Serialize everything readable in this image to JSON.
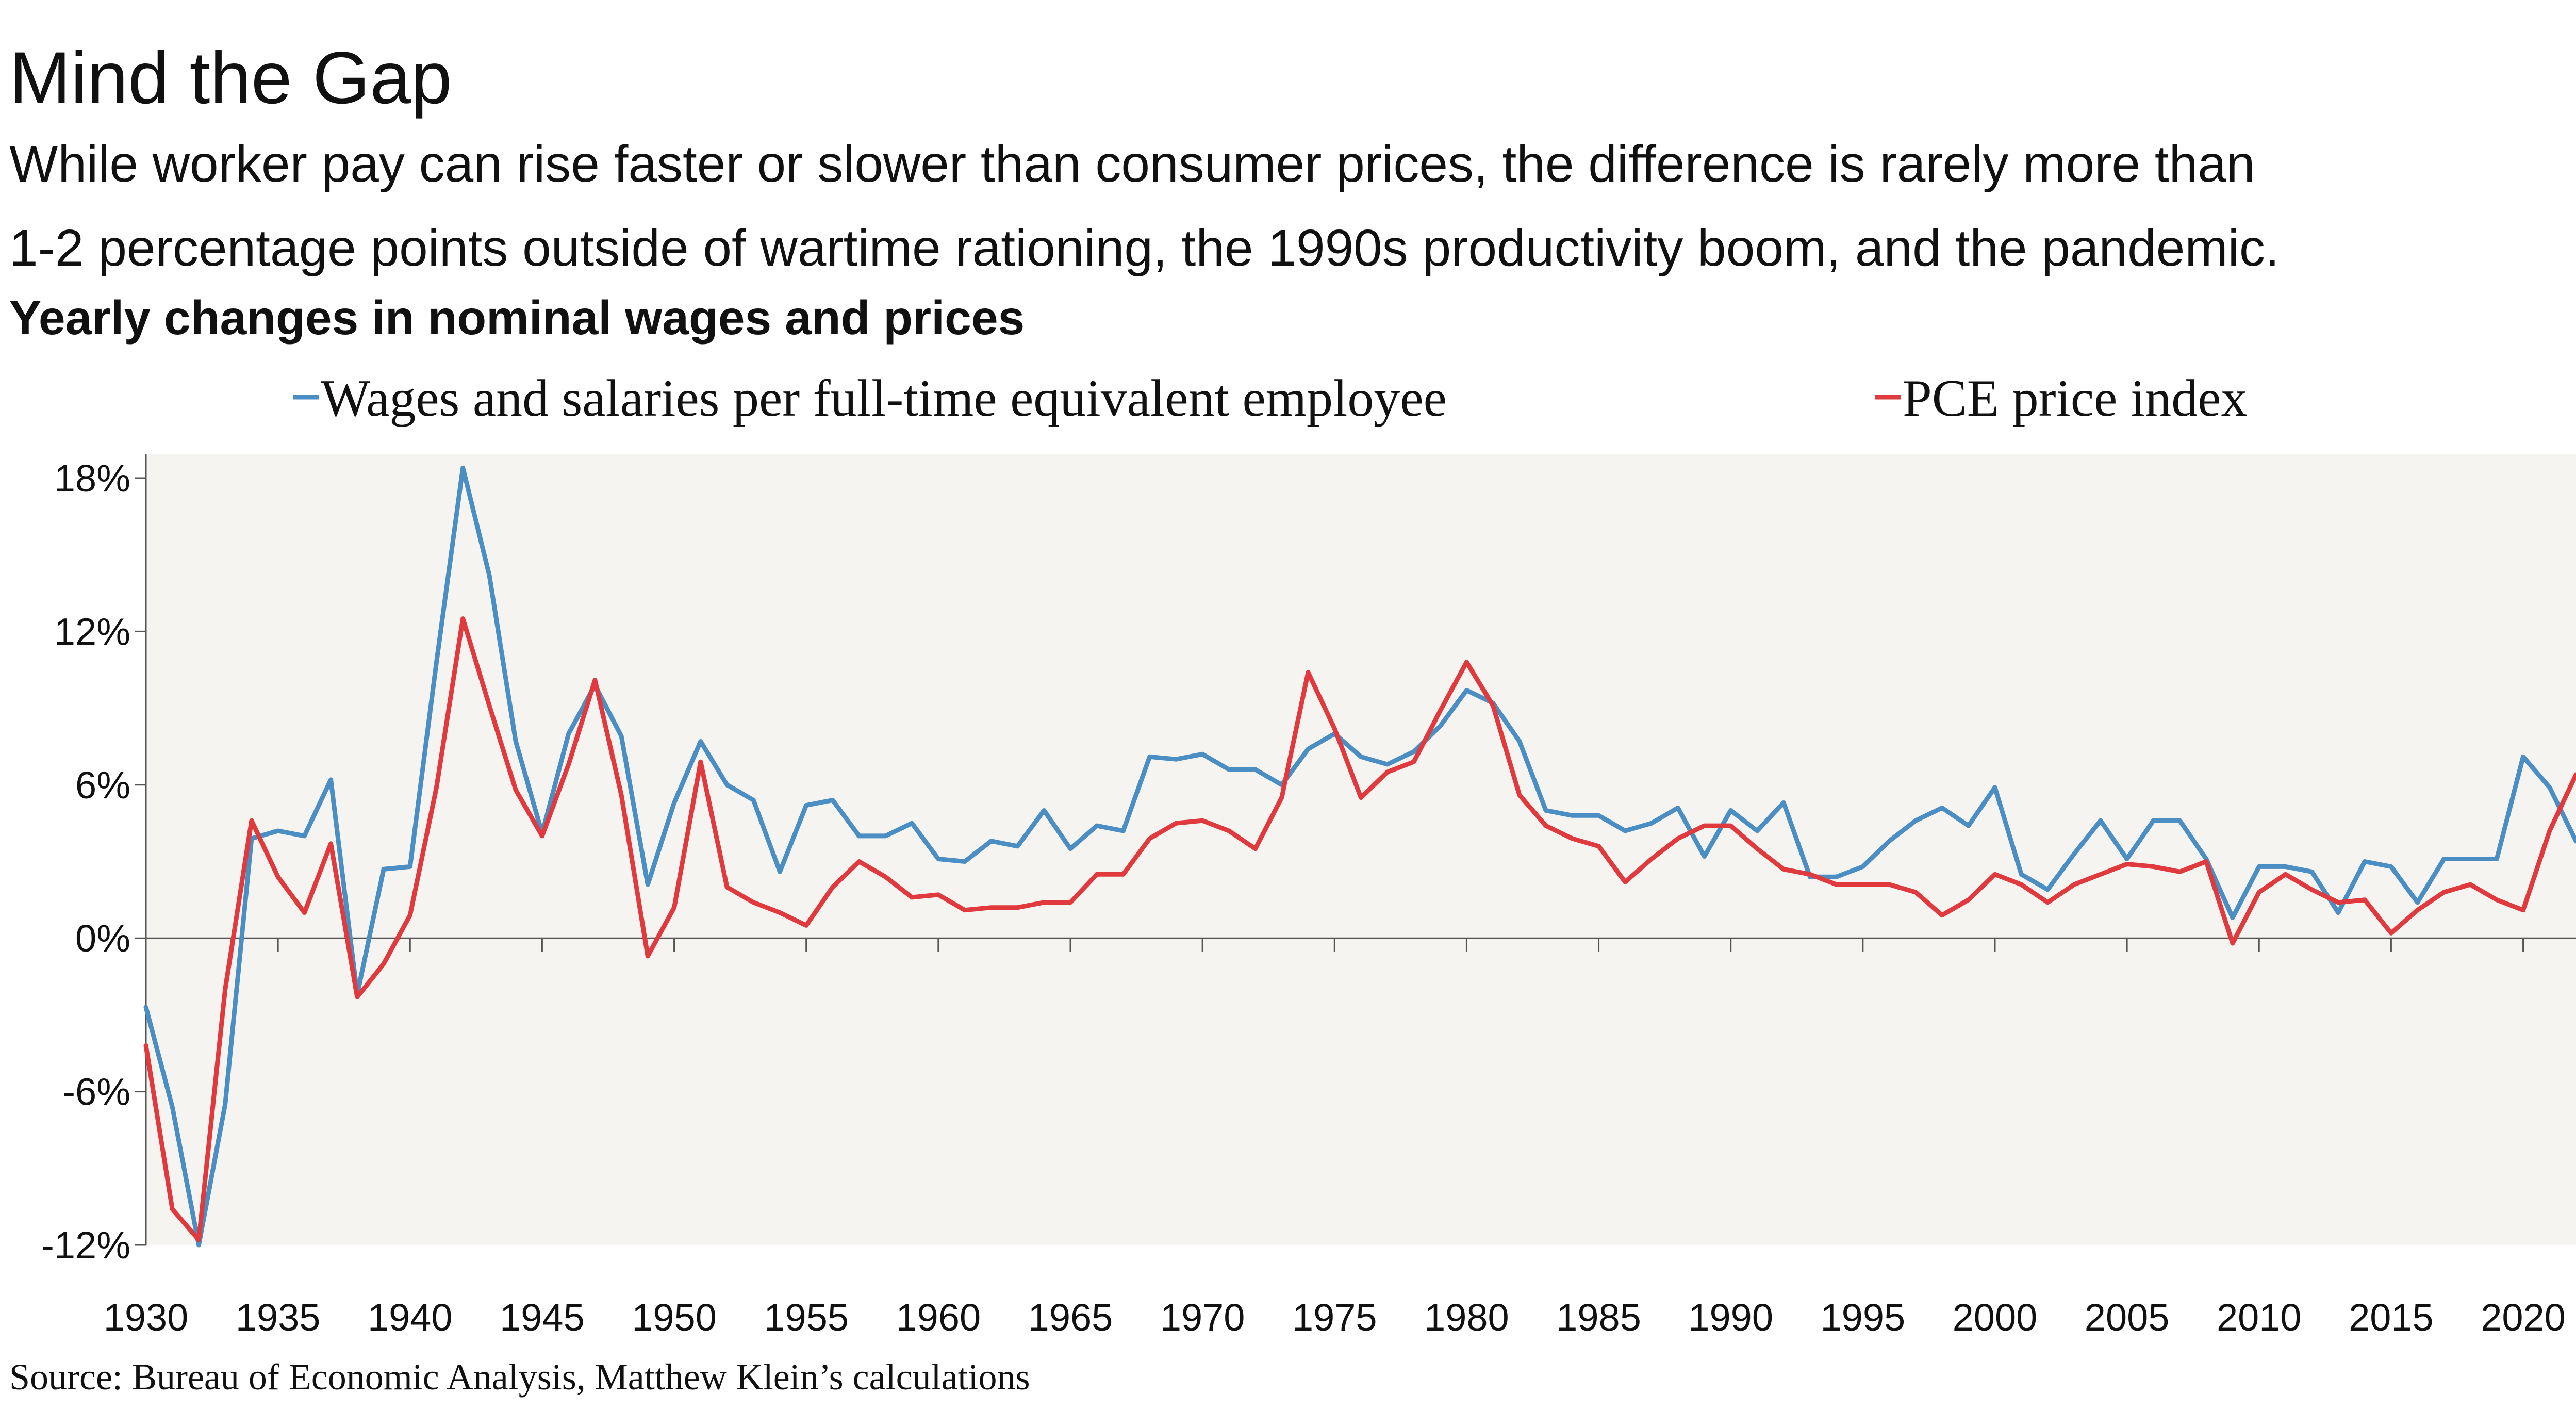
{
  "header": {
    "title": "Mind the Gap",
    "subtitle_line1": "While worker pay can rise faster or slower than consumer prices, the difference is rarely more than",
    "subtitle_line2": "1-2 percentage points outside of wartime rationing, the 1990s productivity boom, and the pandemic."
  },
  "footer": {
    "source": "Source: Bureau of Economic Analysis, Matthew Klein’s calculations"
  },
  "colors": {
    "wages": "#4a8ec4",
    "pce": "#e0393e",
    "plot_background": "#f6f4f0"
  },
  "chart_data": {
    "type": "line",
    "title": "Yearly changes in nominal wages and prices",
    "xlabel": "",
    "ylabel": "",
    "ylim": [
      -12,
      18
    ],
    "xlim": [
      1930,
      2022
    ],
    "y_ticks": [
      -12,
      -6,
      0,
      6,
      12,
      18
    ],
    "y_tick_labels": [
      "-12%",
      "-6%",
      "0%",
      "6%",
      "12%",
      "18%"
    ],
    "x_ticks": [
      1930,
      1935,
      1940,
      1945,
      1950,
      1955,
      1960,
      1965,
      1970,
      1975,
      1980,
      1985,
      1990,
      1995,
      2000,
      2005,
      2010,
      2015,
      2020
    ],
    "x_tick_labels": [
      "1930",
      "1935",
      "1940",
      "1945",
      "1950",
      "1955",
      "1960",
      "1965",
      "1970",
      "1975",
      "1980",
      "1985",
      "1990",
      "1995",
      "2000",
      "2005",
      "2010",
      "2015",
      "2020"
    ],
    "grid": false,
    "legend_position": "top",
    "x": [
      1930,
      1931,
      1932,
      1933,
      1934,
      1935,
      1936,
      1937,
      1938,
      1939,
      1940,
      1941,
      1942,
      1943,
      1944,
      1945,
      1946,
      1947,
      1948,
      1949,
      1950,
      1951,
      1952,
      1953,
      1954,
      1955,
      1956,
      1957,
      1958,
      1959,
      1960,
      1961,
      1962,
      1963,
      1964,
      1965,
      1966,
      1967,
      1968,
      1969,
      1970,
      1971,
      1972,
      1973,
      1974,
      1975,
      1976,
      1977,
      1978,
      1979,
      1980,
      1981,
      1982,
      1983,
      1984,
      1985,
      1986,
      1987,
      1988,
      1989,
      1990,
      1991,
      1992,
      1993,
      1994,
      1995,
      1996,
      1997,
      1998,
      1999,
      2000,
      2001,
      2002,
      2003,
      2004,
      2005,
      2006,
      2007,
      2008,
      2009,
      2010,
      2011,
      2012,
      2013,
      2014,
      2015,
      2016,
      2017,
      2018,
      2019,
      2020,
      2021,
      2022
    ],
    "series": [
      {
        "name": "Wages and salaries per full-time equivalent employee",
        "color": "#4a8ec4",
        "values": [
          -2.7,
          -6.6,
          -12.0,
          -6.5,
          3.9,
          4.2,
          4.0,
          6.2,
          -2.2,
          2.7,
          2.8,
          10.8,
          18.4,
          14.2,
          7.7,
          4.1,
          8.0,
          9.9,
          7.9,
          2.1,
          5.3,
          7.7,
          6.0,
          5.4,
          2.6,
          5.2,
          5.4,
          4.0,
          4.0,
          4.5,
          3.1,
          3.0,
          3.8,
          3.6,
          5.0,
          3.5,
          4.4,
          4.2,
          7.1,
          7.0,
          7.2,
          6.6,
          6.6,
          6.0,
          7.4,
          8.0,
          7.1,
          6.8,
          7.3,
          8.3,
          9.7,
          9.2,
          7.7,
          5.0,
          4.8,
          4.8,
          4.2,
          4.5,
          5.1,
          3.2,
          5.0,
          4.2,
          5.3,
          2.4,
          2.4,
          2.8,
          3.8,
          4.6,
          5.1,
          4.4,
          5.9,
          2.5,
          1.9,
          3.3,
          4.6,
          3.1,
          4.6,
          4.6,
          3.1,
          0.8,
          2.8,
          2.8,
          2.6,
          1.0,
          3.0,
          2.8,
          1.4,
          3.1,
          3.1,
          3.1,
          7.1,
          5.9,
          3.8
        ]
      },
      {
        "name": "PCE price index",
        "color": "#e0393e",
        "values": [
          -4.2,
          -10.6,
          -11.8,
          -2.0,
          4.6,
          2.4,
          1.0,
          3.7,
          -2.3,
          -1.0,
          0.9,
          5.9,
          12.5,
          9.1,
          5.8,
          4.0,
          6.8,
          10.1,
          5.6,
          -0.7,
          1.2,
          6.9,
          2.0,
          1.4,
          1.0,
          0.5,
          2.0,
          3.0,
          2.4,
          1.6,
          1.7,
          1.1,
          1.2,
          1.2,
          1.4,
          1.4,
          2.5,
          2.5,
          3.9,
          4.5,
          4.6,
          4.2,
          3.5,
          5.5,
          10.4,
          8.2,
          5.5,
          6.5,
          6.9,
          8.9,
          10.8,
          9.1,
          5.6,
          4.4,
          3.9,
          3.6,
          2.2,
          3.1,
          3.9,
          4.4,
          4.4,
          3.5,
          2.7,
          2.5,
          2.1,
          2.1,
          2.1,
          1.8,
          0.9,
          1.5,
          2.5,
          2.1,
          1.4,
          2.1,
          2.5,
          2.9,
          2.8,
          2.6,
          3.0,
          -0.2,
          1.8,
          2.5,
          1.9,
          1.4,
          1.5,
          0.2,
          1.1,
          1.8,
          2.1,
          1.5,
          1.1,
          4.2,
          6.4
        ]
      }
    ]
  }
}
